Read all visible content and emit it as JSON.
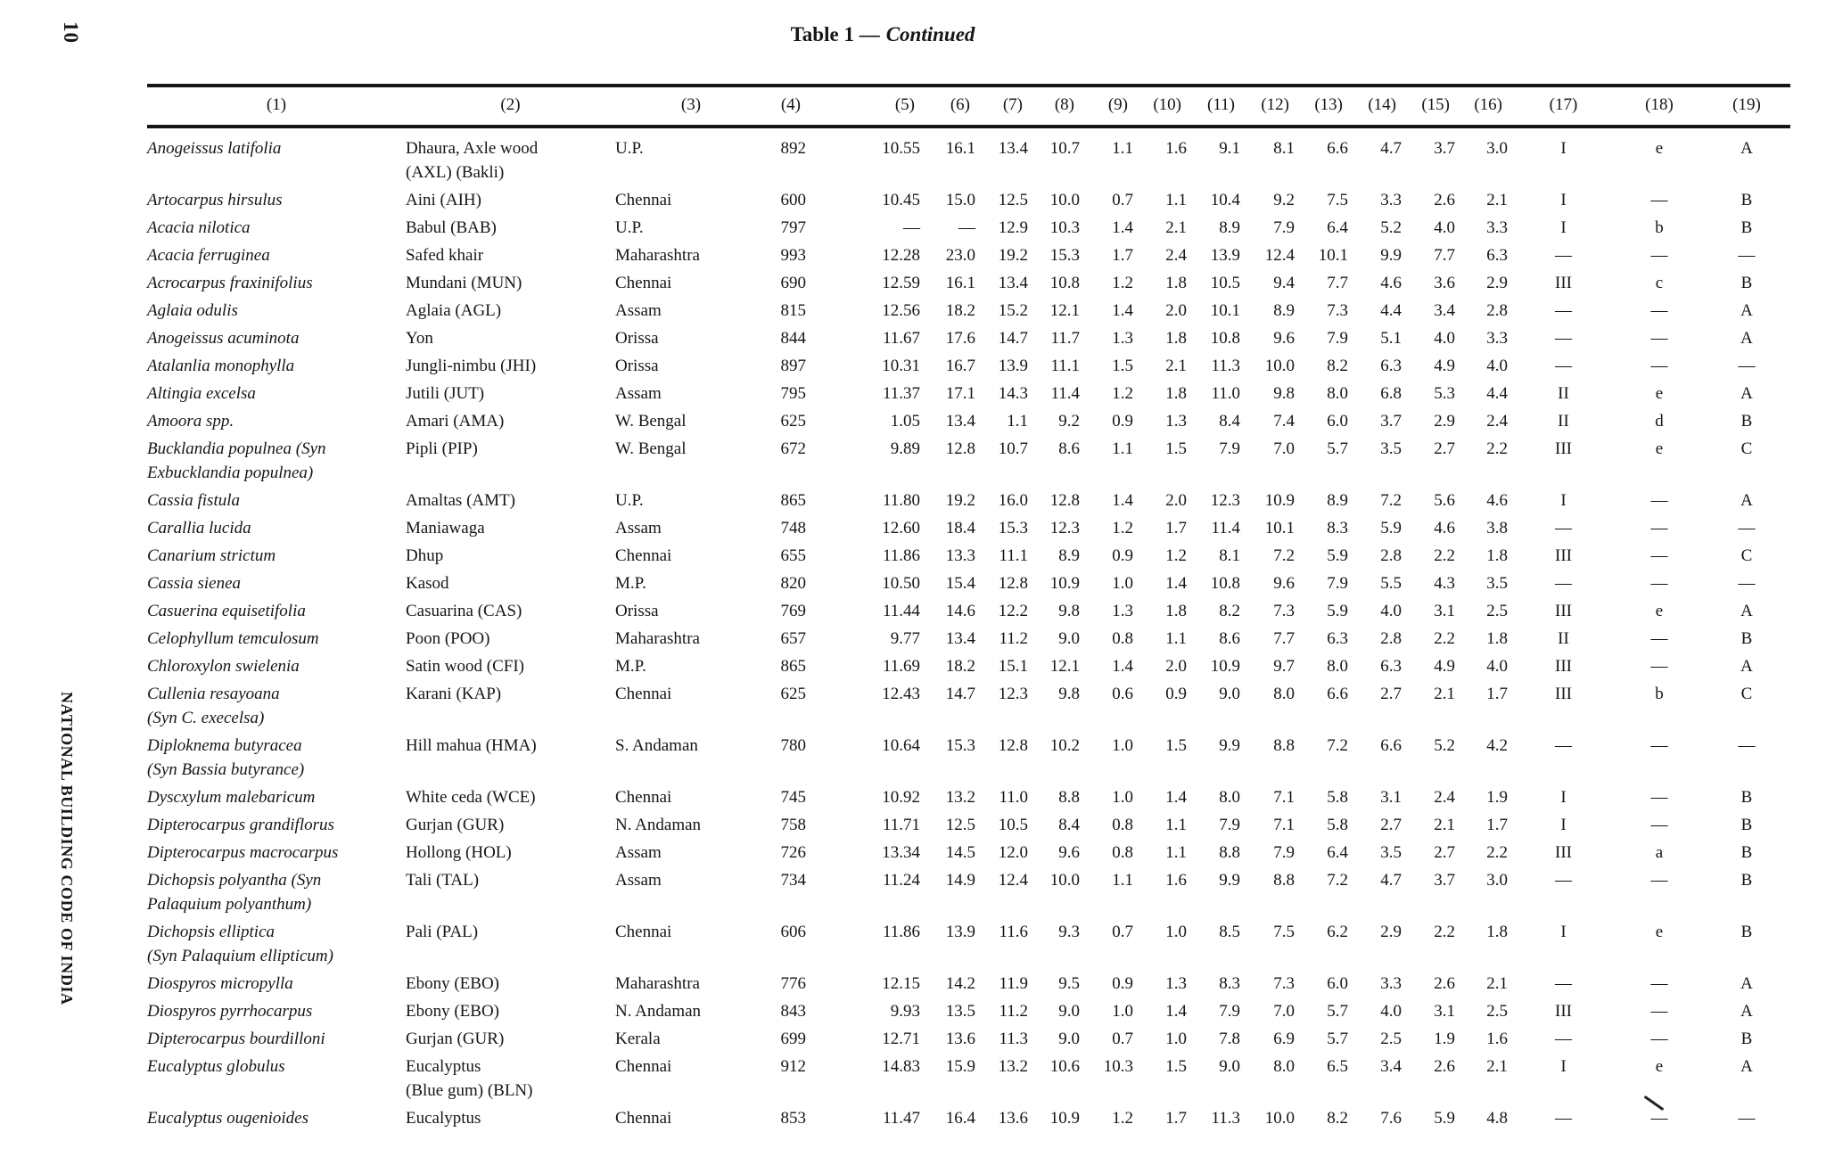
{
  "page": {
    "page_number": "10",
    "spine_text": "NATIONAL BUILDING CODE OF INDIA",
    "title": {
      "bold": "Table 1 —",
      "italic": "Continued"
    }
  },
  "table": {
    "column_headers": [
      "(1)",
      "(2)",
      "(3)",
      "(4)",
      "(5)",
      "(6)",
      "(7)",
      "(8)",
      "(9)",
      "(10)",
      "(11)",
      "(12)",
      "(13)",
      "(14)",
      "(15)",
      "(16)",
      "(17)",
      "(18)",
      "(19)"
    ],
    "rows": [
      {
        "species": [
          "Anogeissus latifolia"
        ],
        "common": [
          "Dhaura, Axle wood",
          "(AXL) (Bakli)"
        ],
        "place": "U.P.",
        "values": [
          "892",
          "10.55",
          "16.1",
          "13.4",
          "10.7",
          "1.1",
          "1.6",
          "9.1",
          "8.1",
          "6.6",
          "4.7",
          "3.7",
          "3.0",
          "I",
          "e",
          "A"
        ]
      },
      {
        "species": [
          "Artocarpus hirsulus"
        ],
        "common": [
          "Aini (AIH)"
        ],
        "place": "Chennai",
        "values": [
          "600",
          "10.45",
          "15.0",
          "12.5",
          "10.0",
          "0.7",
          "1.1",
          "10.4",
          "9.2",
          "7.5",
          "3.3",
          "2.6",
          "2.1",
          "I",
          "—",
          "B"
        ]
      },
      {
        "species": [
          "Acacia nilotica"
        ],
        "common": [
          "Babul (BAB)"
        ],
        "place": "U.P.",
        "values": [
          "797",
          "—",
          "—",
          "12.9",
          "10.3",
          "1.4",
          "2.1",
          "8.9",
          "7.9",
          "6.4",
          "5.2",
          "4.0",
          "3.3",
          "I",
          "b",
          "B"
        ]
      },
      {
        "species": [
          "Acacia ferruginea"
        ],
        "common": [
          "Safed khair"
        ],
        "place": "Maharashtra",
        "values": [
          "993",
          "12.28",
          "23.0",
          "19.2",
          "15.3",
          "1.7",
          "2.4",
          "13.9",
          "12.4",
          "10.1",
          "9.9",
          "7.7",
          "6.3",
          "—",
          "—",
          "—"
        ]
      },
      {
        "species": [
          "Acrocarpus fraxinifolius"
        ],
        "common": [
          "Mundani (MUN)"
        ],
        "place": "Chennai",
        "values": [
          "690",
          "12.59",
          "16.1",
          "13.4",
          "10.8",
          "1.2",
          "1.8",
          "10.5",
          "9.4",
          "7.7",
          "4.6",
          "3.6",
          "2.9",
          "III",
          "c",
          "B"
        ]
      },
      {
        "species": [
          "Aglaia odulis"
        ],
        "common": [
          "Aglaia (AGL)"
        ],
        "place": "Assam",
        "values": [
          "815",
          "12.56",
          "18.2",
          "15.2",
          "12.1",
          "1.4",
          "2.0",
          "10.1",
          "8.9",
          "7.3",
          "4.4",
          "3.4",
          "2.8",
          "—",
          "—",
          "A"
        ]
      },
      {
        "species": [
          "Anogeissus acuminota"
        ],
        "common": [
          "Yon"
        ],
        "place": "Orissa",
        "values": [
          "844",
          "11.67",
          "17.6",
          "14.7",
          "11.7",
          "1.3",
          "1.8",
          "10.8",
          "9.6",
          "7.9",
          "5.1",
          "4.0",
          "3.3",
          "—",
          "—",
          "A"
        ]
      },
      {
        "species": [
          "Atalanlia monophylla"
        ],
        "common": [
          "Jungli-nimbu (JHI)"
        ],
        "place": "Orissa",
        "values": [
          "897",
          "10.31",
          "16.7",
          "13.9",
          "11.1",
          "1.5",
          "2.1",
          "11.3",
          "10.0",
          "8.2",
          "6.3",
          "4.9",
          "4.0",
          "—",
          "—",
          "—"
        ]
      },
      {
        "species": [
          "Altingia excelsa"
        ],
        "common": [
          "Jutili (JUT)"
        ],
        "place": "Assam",
        "values": [
          "795",
          "11.37",
          "17.1",
          "14.3",
          "11.4",
          "1.2",
          "1.8",
          "11.0",
          "9.8",
          "8.0",
          "6.8",
          "5.3",
          "4.4",
          "II",
          "e",
          "A"
        ]
      },
      {
        "species": [
          "Amoora spp."
        ],
        "common": [
          "Amari (AMA)"
        ],
        "place": "W. Bengal",
        "values": [
          "625",
          "1.05",
          "13.4",
          "1.1",
          "9.2",
          "0.9",
          "1.3",
          "8.4",
          "7.4",
          "6.0",
          "3.7",
          "2.9",
          "2.4",
          "II",
          "d",
          "B"
        ]
      },
      {
        "species": [
          "Bucklandia populnea (Syn",
          "Exbucklandia populnea)"
        ],
        "common": [
          "Pipli (PIP)"
        ],
        "place": "W. Bengal",
        "values": [
          "672",
          "9.89",
          "12.8",
          "10.7",
          "8.6",
          "1.1",
          "1.5",
          "7.9",
          "7.0",
          "5.7",
          "3.5",
          "2.7",
          "2.2",
          "III",
          "e",
          "C"
        ]
      },
      {
        "species": [
          "Cassia fistula"
        ],
        "common": [
          "Amaltas (AMT)"
        ],
        "place": "U.P.",
        "values": [
          "865",
          "11.80",
          "19.2",
          "16.0",
          "12.8",
          "1.4",
          "2.0",
          "12.3",
          "10.9",
          "8.9",
          "7.2",
          "5.6",
          "4.6",
          "I",
          "—",
          "A"
        ]
      },
      {
        "species": [
          "Carallia lucida"
        ],
        "common": [
          "Maniawaga"
        ],
        "place": "Assam",
        "values": [
          "748",
          "12.60",
          "18.4",
          "15.3",
          "12.3",
          "1.2",
          "1.7",
          "11.4",
          "10.1",
          "8.3",
          "5.9",
          "4.6",
          "3.8",
          "—",
          "—",
          "—"
        ]
      },
      {
        "species": [
          "Canarium strictum"
        ],
        "common": [
          "Dhup"
        ],
        "place": "Chennai",
        "values": [
          "655",
          "11.86",
          "13.3",
          "11.1",
          "8.9",
          "0.9",
          "1.2",
          "8.1",
          "7.2",
          "5.9",
          "2.8",
          "2.2",
          "1.8",
          "III",
          "—",
          "C"
        ]
      },
      {
        "species": [
          "Cassia sienea"
        ],
        "common": [
          "Kasod"
        ],
        "place": "M.P.",
        "values": [
          "820",
          "10.50",
          "15.4",
          "12.8",
          "10.9",
          "1.0",
          "1.4",
          "10.8",
          "9.6",
          "7.9",
          "5.5",
          "4.3",
          "3.5",
          "—",
          "—",
          "—"
        ]
      },
      {
        "species": [
          "Casuerina equisetifolia"
        ],
        "common": [
          "Casuarina (CAS)"
        ],
        "place": "Orissa",
        "values": [
          "769",
          "11.44",
          "14.6",
          "12.2",
          "9.8",
          "1.3",
          "1.8",
          "8.2",
          "7.3",
          "5.9",
          "4.0",
          "3.1",
          "2.5",
          "III",
          "e",
          "A"
        ]
      },
      {
        "species": [
          "Celophyllum temculosum"
        ],
        "common": [
          "Poon (POO)"
        ],
        "place": "Maharashtra",
        "values": [
          "657",
          "9.77",
          "13.4",
          "11.2",
          "9.0",
          "0.8",
          "1.1",
          "8.6",
          "7.7",
          "6.3",
          "2.8",
          "2.2",
          "1.8",
          "II",
          "—",
          "B"
        ]
      },
      {
        "species": [
          "Chloroxylon swielenia"
        ],
        "common": [
          "Satin wood (CFI)"
        ],
        "place": "M.P.",
        "values": [
          "865",
          "11.69",
          "18.2",
          "15.1",
          "12.1",
          "1.4",
          "2.0",
          "10.9",
          "9.7",
          "8.0",
          "6.3",
          "4.9",
          "4.0",
          "III",
          "—",
          "A"
        ]
      },
      {
        "species": [
          "Cullenia resayoana",
          "(Syn C. execelsa)"
        ],
        "common": [
          "Karani (KAP)"
        ],
        "place": "Chennai",
        "values": [
          "625",
          "12.43",
          "14.7",
          "12.3",
          "9.8",
          "0.6",
          "0.9",
          "9.0",
          "8.0",
          "6.6",
          "2.7",
          "2.1",
          "1.7",
          "III",
          "b",
          "C"
        ]
      },
      {
        "species": [
          "Diploknema butyracea",
          "(Syn Bassia butyrance)"
        ],
        "common": [
          "Hill mahua (HMA)"
        ],
        "place": "S. Andaman",
        "values": [
          "780",
          "10.64",
          "15.3",
          "12.8",
          "10.2",
          "1.0",
          "1.5",
          "9.9",
          "8.8",
          "7.2",
          "6.6",
          "5.2",
          "4.2",
          "—",
          "—",
          "—"
        ]
      },
      {
        "species": [
          "Dyscxylum malebaricum"
        ],
        "common": [
          "White ceda (WCE)"
        ],
        "place": "Chennai",
        "values": [
          "745",
          "10.92",
          "13.2",
          "11.0",
          "8.8",
          "1.0",
          "1.4",
          "8.0",
          "7.1",
          "5.8",
          "3.1",
          "2.4",
          "1.9",
          "I",
          "—",
          "B"
        ]
      },
      {
        "species": [
          "Dipterocarpus grandiflorus"
        ],
        "common": [
          "Gurjan (GUR)"
        ],
        "place": "N. Andaman",
        "values": [
          "758",
          "11.71",
          "12.5",
          "10.5",
          "8.4",
          "0.8",
          "1.1",
          "7.9",
          "7.1",
          "5.8",
          "2.7",
          "2.1",
          "1.7",
          "I",
          "—",
          "B"
        ]
      },
      {
        "species": [
          "Dipterocarpus macrocarpus"
        ],
        "common": [
          "Hollong (HOL)"
        ],
        "place": "Assam",
        "values": [
          "726",
          "13.34",
          "14.5",
          "12.0",
          "9.6",
          "0.8",
          "1.1",
          "8.8",
          "7.9",
          "6.4",
          "3.5",
          "2.7",
          "2.2",
          "III",
          "a",
          "B"
        ]
      },
      {
        "species": [
          "Dichopsis polyantha (Syn",
          "Palaquium polyanthum)"
        ],
        "common": [
          "Tali (TAL)"
        ],
        "place": "Assam",
        "values": [
          "734",
          "11.24",
          "14.9",
          "12.4",
          "10.0",
          "1.1",
          "1.6",
          "9.9",
          "8.8",
          "7.2",
          "4.7",
          "3.7",
          "3.0",
          "—",
          "—",
          "B"
        ]
      },
      {
        "species": [
          "Dichopsis elliptica",
          "(Syn Palaquium ellipticum)"
        ],
        "common": [
          "Pali (PAL)"
        ],
        "place": "Chennai",
        "values": [
          "606",
          "11.86",
          "13.9",
          "11.6",
          "9.3",
          "0.7",
          "1.0",
          "8.5",
          "7.5",
          "6.2",
          "2.9",
          "2.2",
          "1.8",
          "I",
          "e",
          "B"
        ]
      },
      {
        "species": [
          "Diospyros micropylla"
        ],
        "common": [
          "Ebony (EBO)"
        ],
        "place": "Maharashtra",
        "values": [
          "776",
          "12.15",
          "14.2",
          "11.9",
          "9.5",
          "0.9",
          "1.3",
          "8.3",
          "7.3",
          "6.0",
          "3.3",
          "2.6",
          "2.1",
          "—",
          "—",
          "A"
        ]
      },
      {
        "species": [
          "Diospyros pyrrhocarpus"
        ],
        "common": [
          "Ebony (EBO)"
        ],
        "place": "N. Andaman",
        "values": [
          "843",
          "9.93",
          "13.5",
          "11.2",
          "9.0",
          "1.0",
          "1.4",
          "7.9",
          "7.0",
          "5.7",
          "4.0",
          "3.1",
          "2.5",
          "III",
          "—",
          "A"
        ]
      },
      {
        "species": [
          "Dipterocarpus bourdilloni"
        ],
        "common": [
          "Gurjan (GUR)"
        ],
        "place": "Kerala",
        "values": [
          "699",
          "12.71",
          "13.6",
          "11.3",
          "9.0",
          "0.7",
          "1.0",
          "7.8",
          "6.9",
          "5.7",
          "2.5",
          "1.9",
          "1.6",
          "—",
          "—",
          "B"
        ]
      },
      {
        "species": [
          "Eucalyptus globulus"
        ],
        "common": [
          "Eucalyptus",
          "(Blue gum) (BLN)"
        ],
        "place": "Chennai",
        "values": [
          "912",
          "14.83",
          "15.9",
          "13.2",
          "10.6",
          "10.3",
          "1.5",
          "9.0",
          "8.0",
          "6.5",
          "3.4",
          "2.6",
          "2.1",
          "I",
          "e",
          "A"
        ]
      },
      {
        "species": [
          "Eucalyptus ougenioides"
        ],
        "common": [
          "Eucalyptus"
        ],
        "place": "Chennai",
        "values": [
          "853",
          "11.47",
          "16.4",
          "13.6",
          "10.9",
          "1.2",
          "1.7",
          "11.3",
          "10.0",
          "8.2",
          "7.6",
          "5.9",
          "4.8",
          "—",
          "—",
          "—"
        ]
      }
    ]
  }
}
